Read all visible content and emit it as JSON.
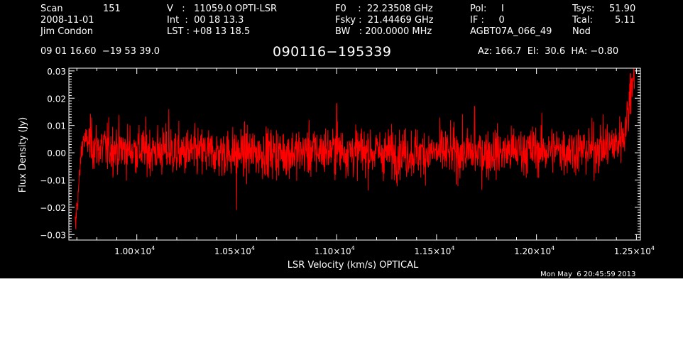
{
  "header": {
    "scan_label": "Scan",
    "scan_number": "151",
    "date": "2008-11-01",
    "observer": "Jim Condon",
    "velocity": "V   :   11059.0 OPTI-LSR",
    "integration": "Int  :  00 18 13.3",
    "lst": "LST : +08 13 18.5",
    "f0": "F0    :  22.23508 GHz",
    "fsky": "Fsky :  21.44469 GHz",
    "bw": "BW   : 200.0000 MHz",
    "pol": "Pol:     I",
    "if": "IF :     0",
    "project": "AGBT07A_066_49",
    "tsys_label": "Tsys:",
    "tsys_value": "51.90",
    "tcal_label": "Tcal:",
    "tcal_value": "5.11",
    "mode": "Nod",
    "coordinates": "09 01 16.60  −19 53 39.0",
    "source": "090116−195339",
    "pointing": "Az: 166.7  El:  30.6  HA: −0.80"
  },
  "timestamp": "Mon May  6 20:45:59 2013",
  "colors": {
    "background": "#000000",
    "axes": "#ffffff",
    "trace": "#ff0000"
  },
  "chart_data": {
    "type": "line",
    "title": "090116−195339",
    "xlabel": "LSR Velocity (km/s) OPTICAL",
    "ylabel": "Flux Density (Jy)",
    "xlim": [
      9660,
      12520
    ],
    "ylim": [
      -0.032,
      0.031
    ],
    "x_ticks": [
      10000,
      10500,
      11000,
      11500,
      12000,
      12500
    ],
    "x_tick_labels": [
      "1.00×10",
      "1.05×10",
      "1.10×10",
      "1.15×10",
      "1.20×10",
      "1.25×10"
    ],
    "x_tick_exponent": "4",
    "y_ticks": [
      -0.03,
      -0.02,
      -0.01,
      0.0,
      0.01,
      0.02,
      0.03
    ],
    "y_tick_labels": [
      "−0.03",
      "−0.02",
      "−0.01",
      "0.00",
      "0.01",
      "0.02",
      "0.03"
    ],
    "grid": false,
    "legend": "none",
    "series": [
      {
        "x_range": [
          9690,
          12490
        ],
        "num_channels": 1900,
        "baseline": 0.0,
        "noise_sigma": 0.0045,
        "points": [
          [
            9690,
            -0.027
          ],
          [
            9700,
            -0.02
          ],
          [
            9710,
            -0.012
          ],
          [
            9720,
            -0.002
          ],
          [
            9730,
            0.005
          ],
          [
            9800,
            0.002
          ],
          [
            10000,
            0.001
          ],
          [
            10250,
            0.0
          ],
          [
            10500,
            0.0
          ],
          [
            10750,
            0.0
          ],
          [
            11000,
            0.001
          ],
          [
            11250,
            0.0
          ],
          [
            11500,
            0.0
          ],
          [
            11750,
            0.0
          ],
          [
            12000,
            0.001
          ],
          [
            12250,
            0.001
          ],
          [
            12400,
            0.003
          ],
          [
            12440,
            0.008
          ],
          [
            12460,
            0.015
          ],
          [
            12480,
            0.028
          ],
          [
            12490,
            0.03
          ]
        ],
        "extremes": [
          [
            9695,
            -0.028
          ],
          [
            10160,
            0.016
          ],
          [
            10500,
            -0.021
          ],
          [
            11000,
            0.018
          ],
          [
            11690,
            0.017
          ],
          [
            12470,
            0.029
          ]
        ]
      }
    ]
  }
}
